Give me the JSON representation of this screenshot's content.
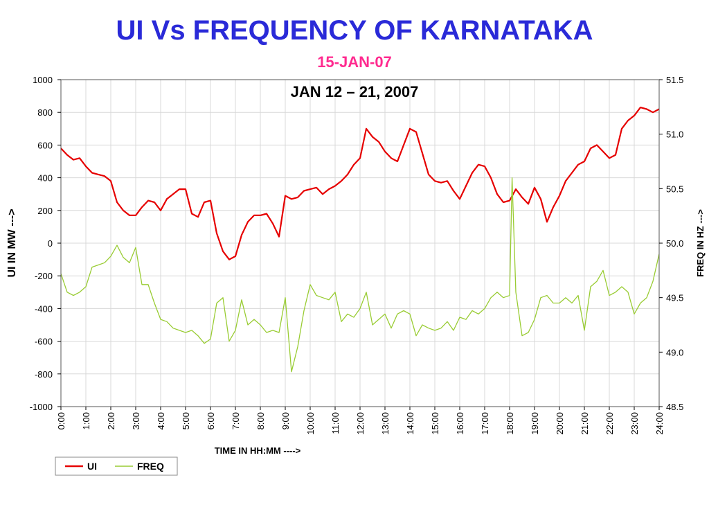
{
  "chart_data": {
    "type": "line",
    "title": "UI Vs FREQUENCY OF KARNATAKA",
    "subtitle": "15-JAN-07",
    "annotation": "JAN 12 – 21, 2007",
    "xlabel": "TIME IN HH:MM  ---->",
    "ylabel_left": "UI IN MW  --->",
    "ylabel_right": "FREQ IN HZ  --->",
    "x_ticks": [
      "0:00",
      "1:00",
      "2:00",
      "3:00",
      "4:00",
      "5:00",
      "6:00",
      "7:00",
      "8:00",
      "9:00",
      "10:00",
      "11:00",
      "12:00",
      "13:00",
      "14:00",
      "15:00",
      "16:00",
      "17:00",
      "18:00",
      "19:00",
      "20:00",
      "21:00",
      "22:00",
      "23:00",
      "24:00"
    ],
    "ylim_left": [
      -1000,
      1000
    ],
    "y_ticks_left": [
      "1000",
      "800",
      "600",
      "400",
      "200",
      "0",
      "-200",
      "-400",
      "-600",
      "-800",
      "-1000"
    ],
    "ylim_right": [
      48.5,
      51.5
    ],
    "y_ticks_right": [
      "51.5",
      "51.0",
      "50.5",
      "50.0",
      "49.5",
      "49.0",
      "48.5"
    ],
    "grid": true,
    "legend": "bottom-left",
    "series": [
      {
        "name": "UI",
        "axis": "left",
        "color": "#e60000",
        "x": [
          0.0,
          0.25,
          0.5,
          0.75,
          1.0,
          1.25,
          1.5,
          1.75,
          2.0,
          2.25,
          2.5,
          2.75,
          3.0,
          3.25,
          3.5,
          3.75,
          4.0,
          4.25,
          4.5,
          4.75,
          5.0,
          5.25,
          5.5,
          5.75,
          6.0,
          6.25,
          6.5,
          6.75,
          7.0,
          7.25,
          7.5,
          7.75,
          8.0,
          8.25,
          8.5,
          8.75,
          9.0,
          9.25,
          9.5,
          9.75,
          10.0,
          10.25,
          10.5,
          10.75,
          11.0,
          11.25,
          11.5,
          11.75,
          12.0,
          12.25,
          12.5,
          12.75,
          13.0,
          13.25,
          13.5,
          13.75,
          14.0,
          14.25,
          14.5,
          14.75,
          15.0,
          15.25,
          15.5,
          15.75,
          16.0,
          16.25,
          16.5,
          16.75,
          17.0,
          17.25,
          17.5,
          17.75,
          18.0,
          18.25,
          18.5,
          18.75,
          19.0,
          19.25,
          19.5,
          19.75,
          20.0,
          20.25,
          20.5,
          20.75,
          21.0,
          21.25,
          21.5,
          21.75,
          22.0,
          22.25,
          22.5,
          22.75,
          23.0,
          23.25,
          23.5,
          23.75,
          24.0
        ],
        "values": [
          580,
          540,
          510,
          520,
          470,
          430,
          420,
          410,
          380,
          250,
          200,
          170,
          170,
          220,
          260,
          250,
          200,
          270,
          300,
          330,
          330,
          180,
          160,
          250,
          260,
          60,
          -50,
          -100,
          -80,
          50,
          130,
          170,
          170,
          180,
          120,
          40,
          290,
          270,
          280,
          320,
          330,
          340,
          300,
          330,
          350,
          380,
          420,
          480,
          520,
          700,
          650,
          620,
          560,
          520,
          500,
          600,
          700,
          680,
          550,
          420,
          380,
          370,
          380,
          320,
          270,
          350,
          430,
          480,
          470,
          400,
          300,
          250,
          260,
          330,
          280,
          240,
          340,
          270,
          130,
          220,
          290,
          380,
          430,
          480,
          500,
          580,
          600,
          560,
          520,
          540,
          700,
          750,
          780,
          830,
          820,
          800,
          820
        ]
      },
      {
        "name": "FREQ",
        "axis": "right",
        "color": "#99cc33",
        "x": [
          0.0,
          0.25,
          0.5,
          0.75,
          1.0,
          1.25,
          1.5,
          1.75,
          2.0,
          2.25,
          2.5,
          2.75,
          3.0,
          3.25,
          3.5,
          3.75,
          4.0,
          4.25,
          4.5,
          4.75,
          5.0,
          5.25,
          5.5,
          5.75,
          6.0,
          6.25,
          6.5,
          6.75,
          7.0,
          7.25,
          7.5,
          7.75,
          8.0,
          8.25,
          8.5,
          8.75,
          9.0,
          9.25,
          9.5,
          9.75,
          10.0,
          10.25,
          10.5,
          10.75,
          11.0,
          11.25,
          11.5,
          11.75,
          12.0,
          12.25,
          12.5,
          12.75,
          13.0,
          13.25,
          13.5,
          13.75,
          14.0,
          14.25,
          14.5,
          14.75,
          15.0,
          15.25,
          15.5,
          15.75,
          16.0,
          16.25,
          16.5,
          16.75,
          17.0,
          17.25,
          17.5,
          17.75,
          18.0,
          18.1,
          18.25,
          18.5,
          18.75,
          19.0,
          19.25,
          19.5,
          19.75,
          20.0,
          20.25,
          20.5,
          20.75,
          21.0,
          21.25,
          21.5,
          21.75,
          22.0,
          22.25,
          22.5,
          22.75,
          23.0,
          23.25,
          23.5,
          23.75,
          24.0
        ],
        "values": [
          49.72,
          49.55,
          49.52,
          49.55,
          49.6,
          49.78,
          49.8,
          49.82,
          49.88,
          49.98,
          49.87,
          49.82,
          49.96,
          49.62,
          49.62,
          49.45,
          49.3,
          49.28,
          49.22,
          49.2,
          49.18,
          49.2,
          49.15,
          49.08,
          49.12,
          49.45,
          49.5,
          49.1,
          49.2,
          49.48,
          49.25,
          49.3,
          49.25,
          49.18,
          49.2,
          49.18,
          49.5,
          48.82,
          49.05,
          49.38,
          49.62,
          49.52,
          49.5,
          49.48,
          49.55,
          49.28,
          49.35,
          49.32,
          49.4,
          49.55,
          49.25,
          49.3,
          49.35,
          49.22,
          49.35,
          49.38,
          49.35,
          49.15,
          49.25,
          49.22,
          49.2,
          49.22,
          49.28,
          49.2,
          49.32,
          49.3,
          49.38,
          49.35,
          49.4,
          49.5,
          49.55,
          49.5,
          49.52,
          50.6,
          49.55,
          49.15,
          49.18,
          49.3,
          49.5,
          49.52,
          49.45,
          49.45,
          49.5,
          49.45,
          49.52,
          49.2,
          49.6,
          49.65,
          49.75,
          49.52,
          49.55,
          49.6,
          49.55,
          49.35,
          49.45,
          49.5,
          49.65,
          49.9
        ]
      }
    ]
  }
}
